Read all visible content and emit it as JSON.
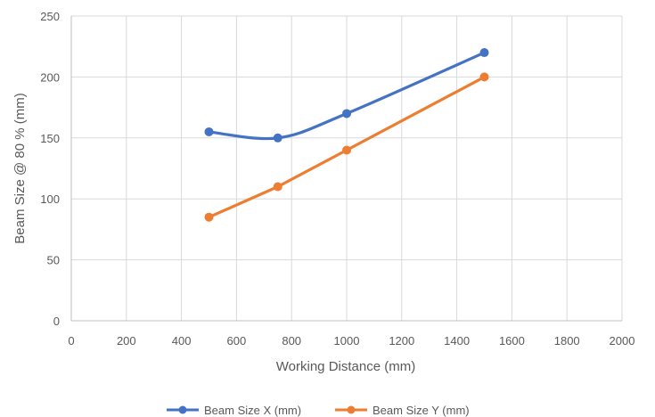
{
  "chart_data": {
    "type": "line",
    "title": "",
    "xlabel": "Working Distance (mm)",
    "ylabel": "Beam Size @ 80 % (mm)",
    "xlim": [
      0,
      2000
    ],
    "ylim": [
      0,
      250
    ],
    "xticks": [
      0,
      200,
      400,
      600,
      800,
      1000,
      1200,
      1400,
      1600,
      1800,
      2000
    ],
    "yticks": [
      0,
      50,
      100,
      150,
      200,
      250
    ],
    "grid": true,
    "legend_position": "bottom",
    "series": [
      {
        "name": "Beam Size X (mm)",
        "color": "#4472C4",
        "smooth": true,
        "x": [
          500,
          750,
          1000,
          1500
        ],
        "y": [
          155,
          150,
          170,
          220
        ]
      },
      {
        "name": "Beam Size Y (mm)",
        "color": "#ED7D31",
        "smooth": false,
        "x": [
          500,
          750,
          1000,
          1500
        ],
        "y": [
          85,
          110,
          140,
          200
        ]
      }
    ]
  }
}
